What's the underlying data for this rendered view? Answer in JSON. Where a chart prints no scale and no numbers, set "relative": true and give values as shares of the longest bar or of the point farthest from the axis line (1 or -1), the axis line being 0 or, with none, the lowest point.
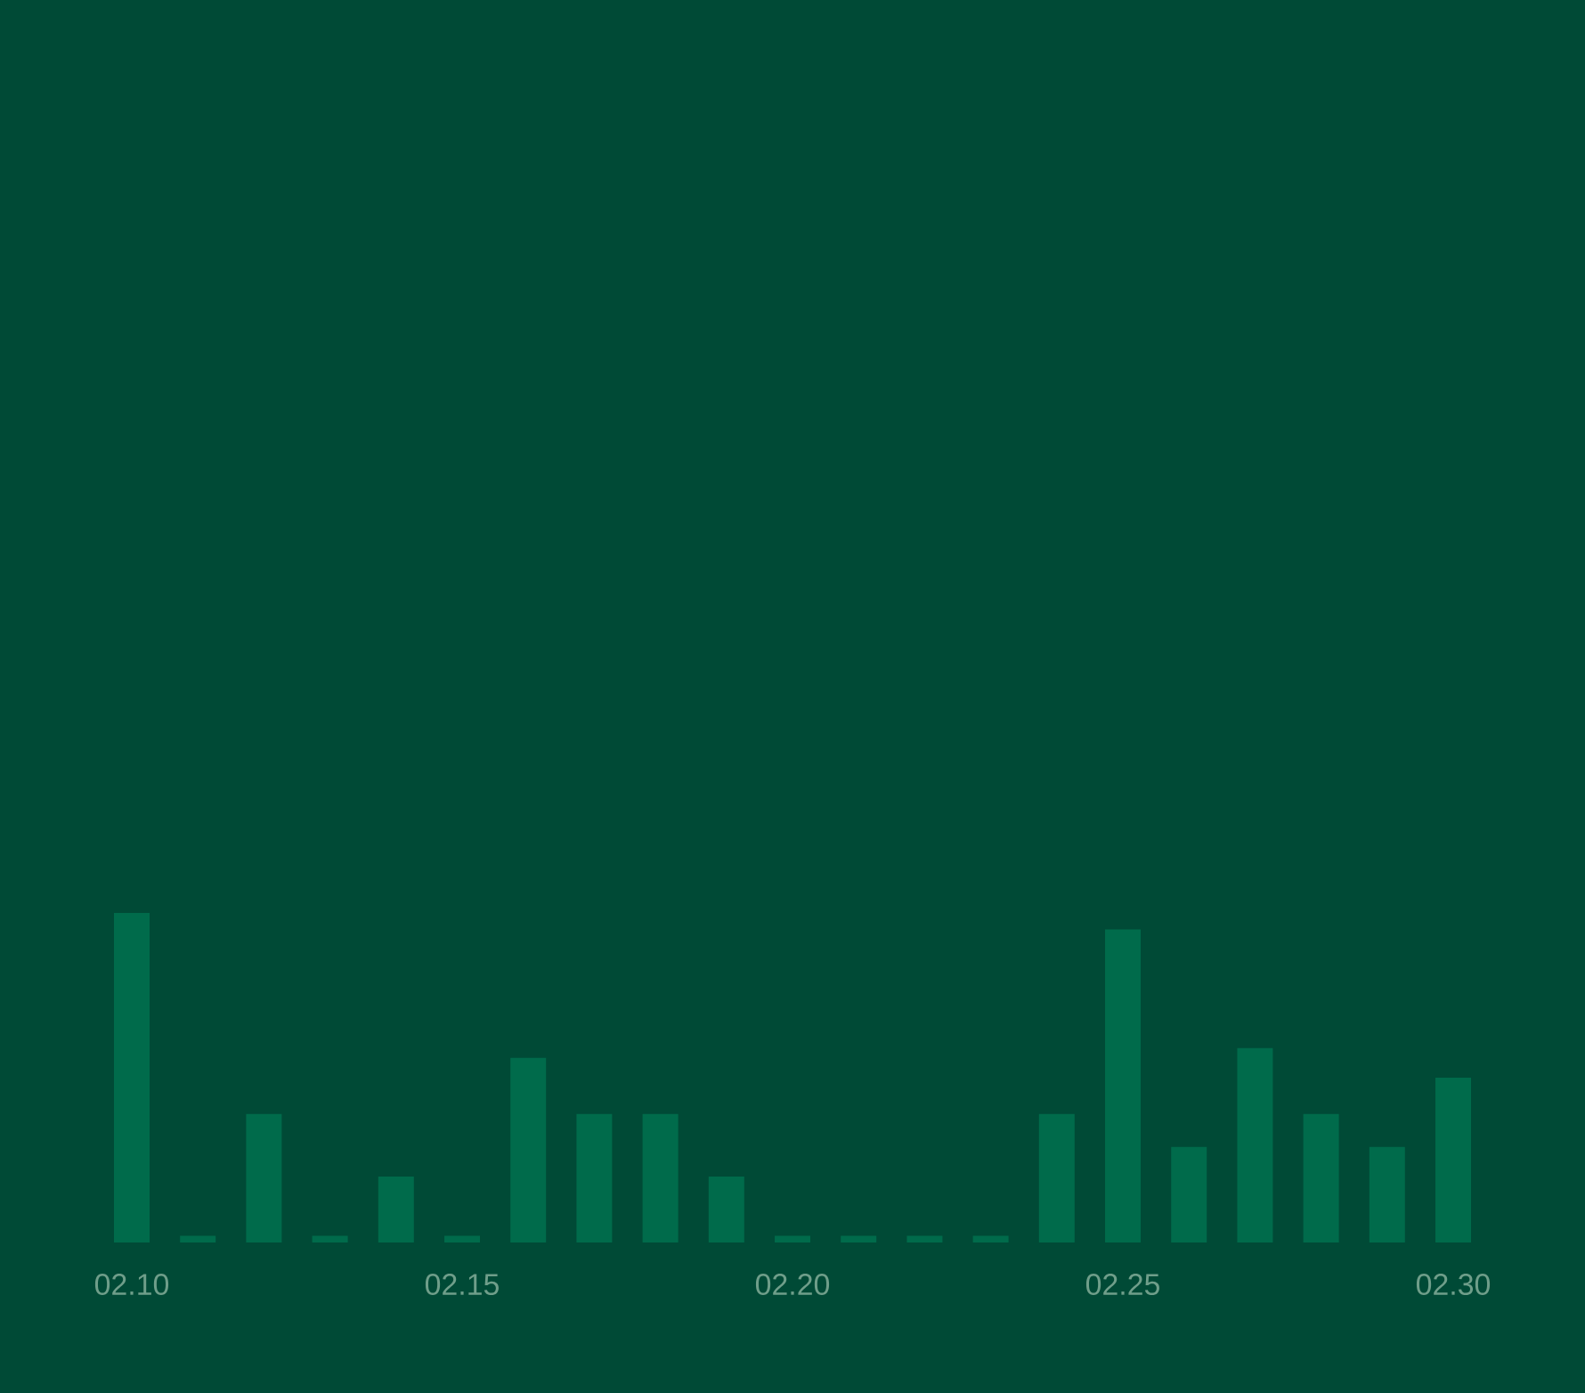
{
  "chart_data": {
    "type": "bar",
    "relative": true,
    "color": "#006b4b",
    "categories": [
      "02.10",
      null,
      null,
      null,
      null,
      "02.15",
      null,
      null,
      null,
      null,
      "02.20",
      null,
      null,
      null,
      null,
      "02.25",
      null,
      null,
      null,
      null,
      "02.30"
    ],
    "values": [
      1,
      0.02,
      0.39,
      0.02,
      0.2,
      0.02,
      0.56,
      0.39,
      0.39,
      0.2,
      0.02,
      0.02,
      0.02,
      0.02,
      0.39,
      0.95,
      0.29,
      0.59,
      0.39,
      0.29,
      0.5
    ]
  }
}
